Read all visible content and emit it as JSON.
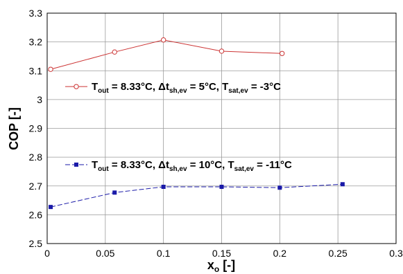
{
  "chart_data": {
    "type": "line",
    "title": "",
    "xlabel": {
      "main": "x",
      "sub": "o",
      "suffix": " [-]"
    },
    "ylabel": "COP [-]",
    "xlim": [
      0,
      0.3
    ],
    "ylim": [
      2.5,
      3.3
    ],
    "xticks": [
      0,
      0.05,
      0.1,
      0.15,
      0.2,
      0.25,
      0.3
    ],
    "yticks": [
      2.5,
      2.6,
      2.7,
      2.8,
      2.9,
      3.0,
      3.1,
      3.2,
      3.3
    ],
    "xtick_labels": [
      "0",
      "0.05",
      "0.1",
      "0.15",
      "0.2",
      "0.25",
      "0.3"
    ],
    "ytick_labels": [
      "2.5",
      "2.6",
      "2.7",
      "2.8",
      "2.9",
      "3",
      "3.1",
      "3.2",
      "3.3"
    ],
    "grid": true,
    "legend_placement": "inline",
    "series": [
      {
        "name": "Tout = 8.33°C, Δtsh,ev = 5°C, Tsat,ev = -3°C",
        "legend_parts": [
          {
            "t": "T",
            "sub": false
          },
          {
            "t": "out",
            "sub": true
          },
          {
            "t": " = 8.33°C, Δt",
            "sub": false
          },
          {
            "t": "sh,ev",
            "sub": true
          },
          {
            "t": " =  5°C, T",
            "sub": false
          },
          {
            "t": "sat,ev",
            "sub": true
          },
          {
            "t": " = -3°C",
            "sub": false
          }
        ],
        "color": "#cc3333",
        "marker": "open-circle",
        "line_style": "solid",
        "x": [
          0.003,
          0.058,
          0.1,
          0.15,
          0.202
        ],
        "y": [
          3.105,
          3.165,
          3.207,
          3.168,
          3.16
        ]
      },
      {
        "name": "Tout = 8.33°C, Δtsh,ev = 10°C, Tsat,ev = -11°C",
        "legend_parts": [
          {
            "t": "T",
            "sub": false
          },
          {
            "t": "out",
            "sub": true
          },
          {
            "t": " = 8.33°C, Δt",
            "sub": false
          },
          {
            "t": "sh,ev",
            "sub": true
          },
          {
            "t": " = 10°C, T",
            "sub": false
          },
          {
            "t": "sat,ev",
            "sub": true
          },
          {
            "t": " = -11°C",
            "sub": false
          }
        ],
        "color": "#1a1aa8",
        "marker": "filled-square",
        "line_style": "dashed",
        "x": [
          0.003,
          0.058,
          0.1,
          0.15,
          0.2,
          0.254
        ],
        "y": [
          2.627,
          2.677,
          2.697,
          2.697,
          2.694,
          2.706
        ]
      }
    ],
    "legend_anchor_y": [
      3.045,
      2.774
    ]
  }
}
